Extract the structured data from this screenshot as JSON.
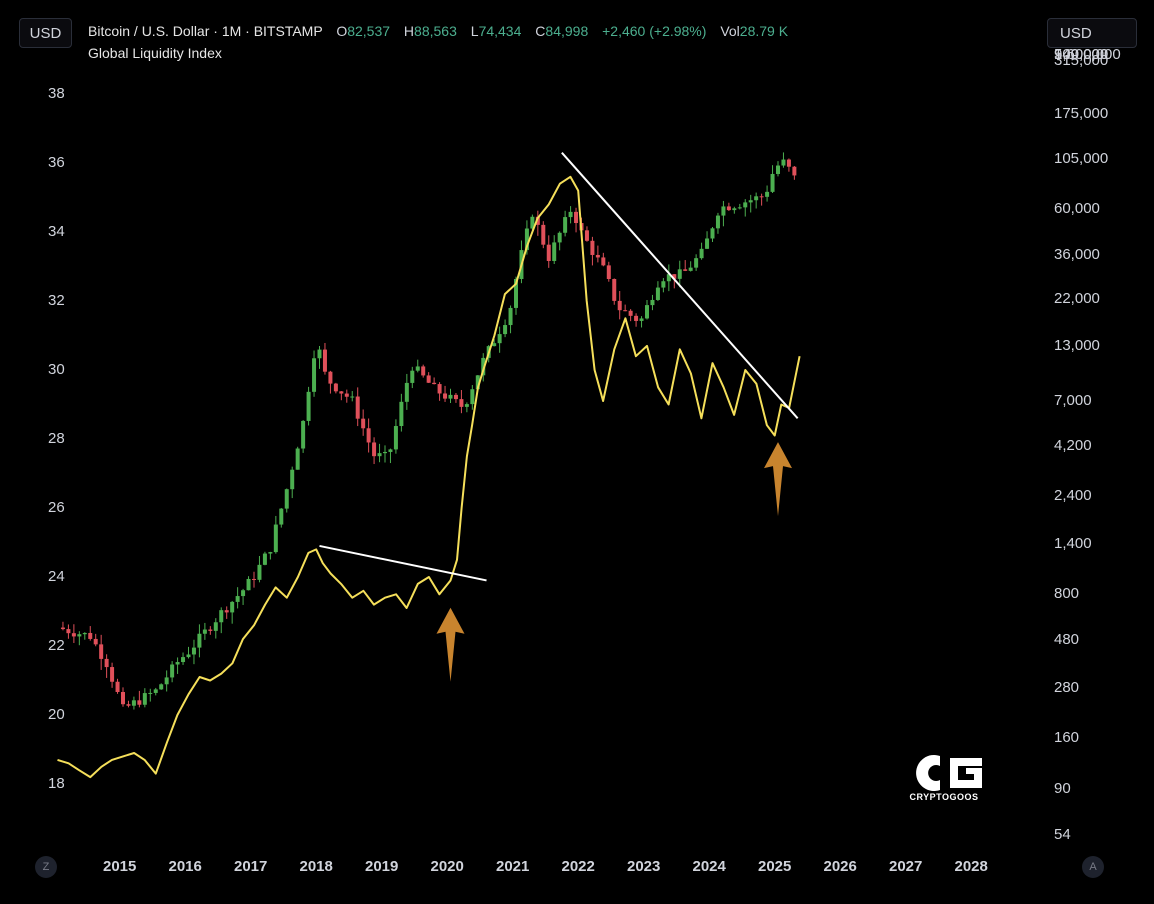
{
  "toolbar": {
    "currency_left": "USD",
    "currency_right": "USD"
  },
  "legend": {
    "symbol": "Bitcoin / U.S. Dollar · 1M · BITSTAMP",
    "open_label": "O",
    "open": "82,537",
    "high_label": "H",
    "high": "88,563",
    "low_label": "L",
    "low": "74,434",
    "close_label": "C",
    "close": "84,998",
    "change": "+2,460 (+2.98%)",
    "vol_label": "Vol",
    "vol": "28.79 K",
    "indicator": "Global Liquidity Index"
  },
  "colors": {
    "up": "#4caf50",
    "down": "#e0505a",
    "liquidity": "#f5df5a",
    "trendline": "#ffffff",
    "arrow": "#c8842e"
  },
  "corner_left": "Z",
  "corner_right": "A",
  "watermark": "CRYPTOGOOS",
  "chart_data": {
    "type": "line",
    "x_ticks": [
      "2015",
      "2016",
      "2017",
      "2018",
      "2019",
      "2020",
      "2021",
      "2022",
      "2023",
      "2024",
      "2025",
      "2026",
      "2027",
      "2028"
    ],
    "y_left": {
      "ticks": [
        "18",
        "20",
        "22",
        "24",
        "26",
        "28",
        "30",
        "32",
        "34",
        "36",
        "38"
      ],
      "range": [
        17.4,
        39.1
      ]
    },
    "y_right": {
      "scale": "log",
      "ticks": [
        "54",
        "90",
        "160",
        "280",
        "480",
        "800",
        "1,400",
        "2,400",
        "4,200",
        "7,000",
        "13,000",
        "22,000",
        "36,000",
        "60,000",
        "105,000",
        "175,000",
        "315,000",
        "540,000",
        "900,000",
        "1,600,000"
      ]
    },
    "series": [
      {
        "name": "Global Liquidity Index",
        "axis": "left",
        "x": [
          2014.0,
          2014.17,
          2014.33,
          2014.5,
          2014.67,
          2014.83,
          2015.0,
          2015.17,
          2015.33,
          2015.5,
          2015.67,
          2015.83,
          2016.0,
          2016.17,
          2016.33,
          2016.5,
          2016.67,
          2016.83,
          2017.0,
          2017.17,
          2017.33,
          2017.5,
          2017.67,
          2017.83,
          2017.95,
          2018.05,
          2018.17,
          2018.33,
          2018.5,
          2018.67,
          2018.83,
          2019.0,
          2019.17,
          2019.33,
          2019.5,
          2019.67,
          2019.83,
          2020.0,
          2020.1,
          2020.17,
          2020.25,
          2020.33,
          2020.42,
          2020.5,
          2020.67,
          2020.83,
          2021.0,
          2021.17,
          2021.33,
          2021.5,
          2021.67,
          2021.83,
          2021.95,
          2022.08,
          2022.2,
          2022.33,
          2022.5,
          2022.67,
          2022.83,
          2023.0,
          2023.17,
          2023.33,
          2023.5,
          2023.67,
          2023.83,
          2024.0,
          2024.17,
          2024.33,
          2024.5,
          2024.67,
          2024.83,
          2024.95,
          2025.05,
          2025.17,
          2025.33
        ],
        "y": [
          18.7,
          18.6,
          18.4,
          18.2,
          18.5,
          18.7,
          18.8,
          18.9,
          18.7,
          18.3,
          19.2,
          20.0,
          20.6,
          21.1,
          21.0,
          21.2,
          21.5,
          22.2,
          22.6,
          23.2,
          23.7,
          23.4,
          24.0,
          24.7,
          24.8,
          24.4,
          24.1,
          23.8,
          23.4,
          23.6,
          23.2,
          23.4,
          23.5,
          23.1,
          23.8,
          24.0,
          23.5,
          23.9,
          24.5,
          26.0,
          27.5,
          28.4,
          29.5,
          30.0,
          31.0,
          32.2,
          32.5,
          33.6,
          34.4,
          34.8,
          35.4,
          35.6,
          35.2,
          32.0,
          30.0,
          29.1,
          30.6,
          31.5,
          30.4,
          30.7,
          29.5,
          29.0,
          30.6,
          29.9,
          28.6,
          30.2,
          29.5,
          28.7,
          30.0,
          29.6,
          28.4,
          28.1,
          29.0,
          28.9,
          30.4
        ]
      },
      {
        "name": "Bitcoin / U.S. Dollar",
        "axis": "right",
        "type": "candlestick",
        "ohlc_monthly_approx": [
          {
            "x": 2014.0,
            "y": 550
          },
          {
            "x": 2014.5,
            "y": 500
          },
          {
            "x": 2014.75,
            "y": 370
          },
          {
            "x": 2015.0,
            "y": 220
          },
          {
            "x": 2015.5,
            "y": 270
          },
          {
            "x": 2015.85,
            "y": 380
          },
          {
            "x": 2016.0,
            "y": 420
          },
          {
            "x": 2016.5,
            "y": 650
          },
          {
            "x": 2016.85,
            "y": 850
          },
          {
            "x": 2017.0,
            "y": 980
          },
          {
            "x": 2017.25,
            "y": 1350
          },
          {
            "x": 2017.5,
            "y": 2600
          },
          {
            "x": 2017.75,
            "y": 5500
          },
          {
            "x": 2017.95,
            "y": 14000
          },
          {
            "x": 2018.1,
            "y": 9000
          },
          {
            "x": 2018.5,
            "y": 7000
          },
          {
            "x": 2018.83,
            "y": 3800
          },
          {
            "x": 2019.05,
            "y": 3700
          },
          {
            "x": 2019.4,
            "y": 10500
          },
          {
            "x": 2019.75,
            "y": 8000
          },
          {
            "x": 2020.2,
            "y": 6500
          },
          {
            "x": 2020.5,
            "y": 11000
          },
          {
            "x": 2020.9,
            "y": 19000
          },
          {
            "x": 2021.05,
            "y": 33000
          },
          {
            "x": 2021.25,
            "y": 58000
          },
          {
            "x": 2021.5,
            "y": 35000
          },
          {
            "x": 2021.85,
            "y": 61000
          },
          {
            "x": 2022.0,
            "y": 46000
          },
          {
            "x": 2022.35,
            "y": 30000
          },
          {
            "x": 2022.55,
            "y": 20000
          },
          {
            "x": 2022.9,
            "y": 17000
          },
          {
            "x": 2023.2,
            "y": 28000
          },
          {
            "x": 2023.55,
            "y": 29000
          },
          {
            "x": 2023.85,
            "y": 37000
          },
          {
            "x": 2024.1,
            "y": 61000
          },
          {
            "x": 2024.4,
            "y": 64000
          },
          {
            "x": 2024.8,
            "y": 70000
          },
          {
            "x": 2024.95,
            "y": 96000
          },
          {
            "x": 2025.1,
            "y": 102000
          },
          {
            "x": 2025.25,
            "y": 84998
          }
        ]
      }
    ],
    "annotations": [
      {
        "type": "trendline",
        "from": [
          2018.0,
          24.9
        ],
        "to": [
          2020.55,
          23.9
        ]
      },
      {
        "type": "trendline",
        "from": [
          2021.7,
          36.3
        ],
        "to": [
          2025.3,
          28.6
        ]
      },
      {
        "type": "arrow-up",
        "at": [
          2020.0,
          23.4
        ]
      },
      {
        "type": "arrow-up",
        "at": [
          2025.0,
          28.2
        ]
      }
    ]
  }
}
